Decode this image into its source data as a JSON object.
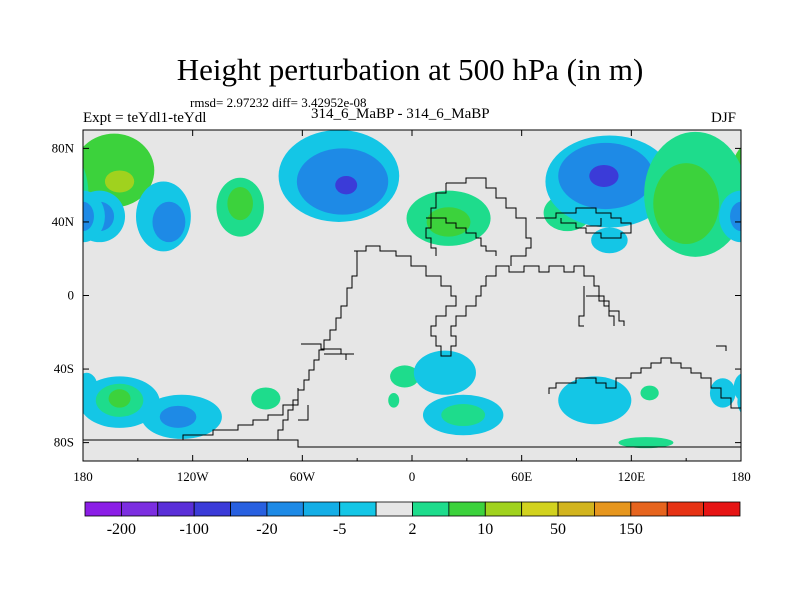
{
  "chart_data": {
    "type": "heatmap",
    "title": "Height perturbation at 500 hPa (in m)",
    "stats": "rmsd= 2.97232 diff= 3.42952e-08",
    "left_label": "Expt = teYdl1-teYdl",
    "subtitle": "314_6_MaBP - 314_6_MaBP",
    "right_label": "DJF",
    "x_range": [
      -180,
      180
    ],
    "y_range": [
      -90,
      90
    ],
    "x_ticks": [
      {
        "value": -180,
        "label": "180"
      },
      {
        "value": -120,
        "label": "120W"
      },
      {
        "value": -60,
        "label": "60W"
      },
      {
        "value": 0,
        "label": "0"
      },
      {
        "value": 60,
        "label": "60E"
      },
      {
        "value": 120,
        "label": "120E"
      },
      {
        "value": 180,
        "label": "180"
      }
    ],
    "y_ticks": [
      {
        "value": 80,
        "label": "80N"
      },
      {
        "value": 40,
        "label": "40N"
      },
      {
        "value": 0,
        "label": "0"
      },
      {
        "value": -40,
        "label": "40S"
      },
      {
        "value": -80,
        "label": "80S"
      }
    ],
    "colorbar": {
      "colors": [
        "#8b1ee6",
        "#7c2ee0",
        "#5a2fd8",
        "#3b3bd8",
        "#2860e0",
        "#1e8ae6",
        "#14aee6",
        "#14c6e6",
        "#e6e6e6",
        "#1edc8c",
        "#3cd23c",
        "#a0d21e",
        "#d2d21e",
        "#d2b41e",
        "#e6961e",
        "#e6641e",
        "#e63214",
        "#e61414"
      ],
      "labels": [
        "-200",
        "-100",
        "-20",
        "-5",
        "2",
        "10",
        "50",
        "150"
      ]
    },
    "regions": [
      {
        "lon": -163,
        "lat": 68,
        "rlon": 22,
        "rlat": 20,
        "value": 10
      },
      {
        "lon": -160,
        "lat": 62,
        "rlon": 8,
        "rlat": 6,
        "value": 20
      },
      {
        "lon": -171,
        "lat": 43,
        "rlon": 14,
        "rlat": 14,
        "value": -5
      },
      {
        "lon": -171,
        "lat": 43,
        "rlon": 8,
        "rlat": 8,
        "value": -20
      },
      {
        "lon": -136,
        "lat": 43,
        "rlon": 15,
        "rlat": 19,
        "value": -5
      },
      {
        "lon": -133,
        "lat": 40,
        "rlon": 9,
        "rlat": 11,
        "value": -20
      },
      {
        "lon": -94,
        "lat": 48,
        "rlon": 13,
        "rlat": 16,
        "value": 5
      },
      {
        "lon": -94,
        "lat": 50,
        "rlon": 7,
        "rlat": 9,
        "value": 10
      },
      {
        "lon": -40,
        "lat": 65,
        "rlon": 33,
        "rlat": 25,
        "value": -5
      },
      {
        "lon": -38,
        "lat": 62,
        "rlon": 25,
        "rlat": 18,
        "value": -20
      },
      {
        "lon": -36,
        "lat": 60,
        "rlon": 6,
        "rlat": 5,
        "value": -50
      },
      {
        "lon": 20,
        "lat": 42,
        "rlon": 23,
        "rlat": 15,
        "value": 5
      },
      {
        "lon": 20,
        "lat": 40,
        "rlon": 12,
        "rlat": 8,
        "value": 10
      },
      {
        "lon": 85,
        "lat": 45,
        "rlon": 13,
        "rlat": 10,
        "value": 5
      },
      {
        "lon": 108,
        "lat": 62,
        "rlon": 35,
        "rlat": 25,
        "value": -5
      },
      {
        "lon": 106,
        "lat": 65,
        "rlon": 26,
        "rlat": 18,
        "value": -20
      },
      {
        "lon": 105,
        "lat": 65,
        "rlon": 8,
        "rlat": 6,
        "value": -50
      },
      {
        "lon": 108,
        "lat": 30,
        "rlon": 10,
        "rlat": 7,
        "value": -5
      },
      {
        "lon": 155,
        "lat": 55,
        "rlon": 28,
        "rlat": 34,
        "value": 5
      },
      {
        "lon": 150,
        "lat": 50,
        "rlon": 18,
        "rlat": 22,
        "value": 10
      },
      {
        "lon": 180,
        "lat": 43,
        "rlon": 12,
        "rlat": 14,
        "value": -5
      },
      {
        "lon": 180,
        "lat": 43,
        "rlon": 6,
        "rlat": 8,
        "value": -20
      },
      {
        "lon": -160,
        "lat": -58,
        "rlon": 22,
        "rlat": 14,
        "value": -5
      },
      {
        "lon": -160,
        "lat": -57,
        "rlon": 13,
        "rlat": 9,
        "value": 5
      },
      {
        "lon": -160,
        "lat": -56,
        "rlon": 6,
        "rlat": 5,
        "value": 10
      },
      {
        "lon": -126,
        "lat": -66,
        "rlon": 22,
        "rlat": 12,
        "value": -5
      },
      {
        "lon": -128,
        "lat": -66,
        "rlon": 10,
        "rlat": 6,
        "value": -20
      },
      {
        "lon": -178,
        "lat": -50,
        "rlon": 6,
        "rlat": 8,
        "value": -5
      },
      {
        "lon": -80,
        "lat": -56,
        "rlon": 8,
        "rlat": 6,
        "value": 5
      },
      {
        "lon": -4,
        "lat": -44,
        "rlon": 8,
        "rlat": 6,
        "value": 5
      },
      {
        "lon": -10,
        "lat": -57,
        "rlon": 3,
        "rlat": 4,
        "value": 5
      },
      {
        "lon": 18,
        "lat": -42,
        "rlon": 17,
        "rlat": 12,
        "value": -5
      },
      {
        "lon": 28,
        "lat": -65,
        "rlon": 22,
        "rlat": 11,
        "value": -5
      },
      {
        "lon": 28,
        "lat": -65,
        "rlon": 12,
        "rlat": 6,
        "value": 5
      },
      {
        "lon": 100,
        "lat": -57,
        "rlon": 20,
        "rlat": 13,
        "value": -5
      },
      {
        "lon": 130,
        "lat": -53,
        "rlon": 5,
        "rlat": 4,
        "value": 5
      },
      {
        "lon": 170,
        "lat": -53,
        "rlon": 7,
        "rlat": 8,
        "value": -5
      },
      {
        "lon": 128,
        "lat": -80,
        "rlon": 15,
        "rlat": 3,
        "value": 5
      }
    ]
  }
}
